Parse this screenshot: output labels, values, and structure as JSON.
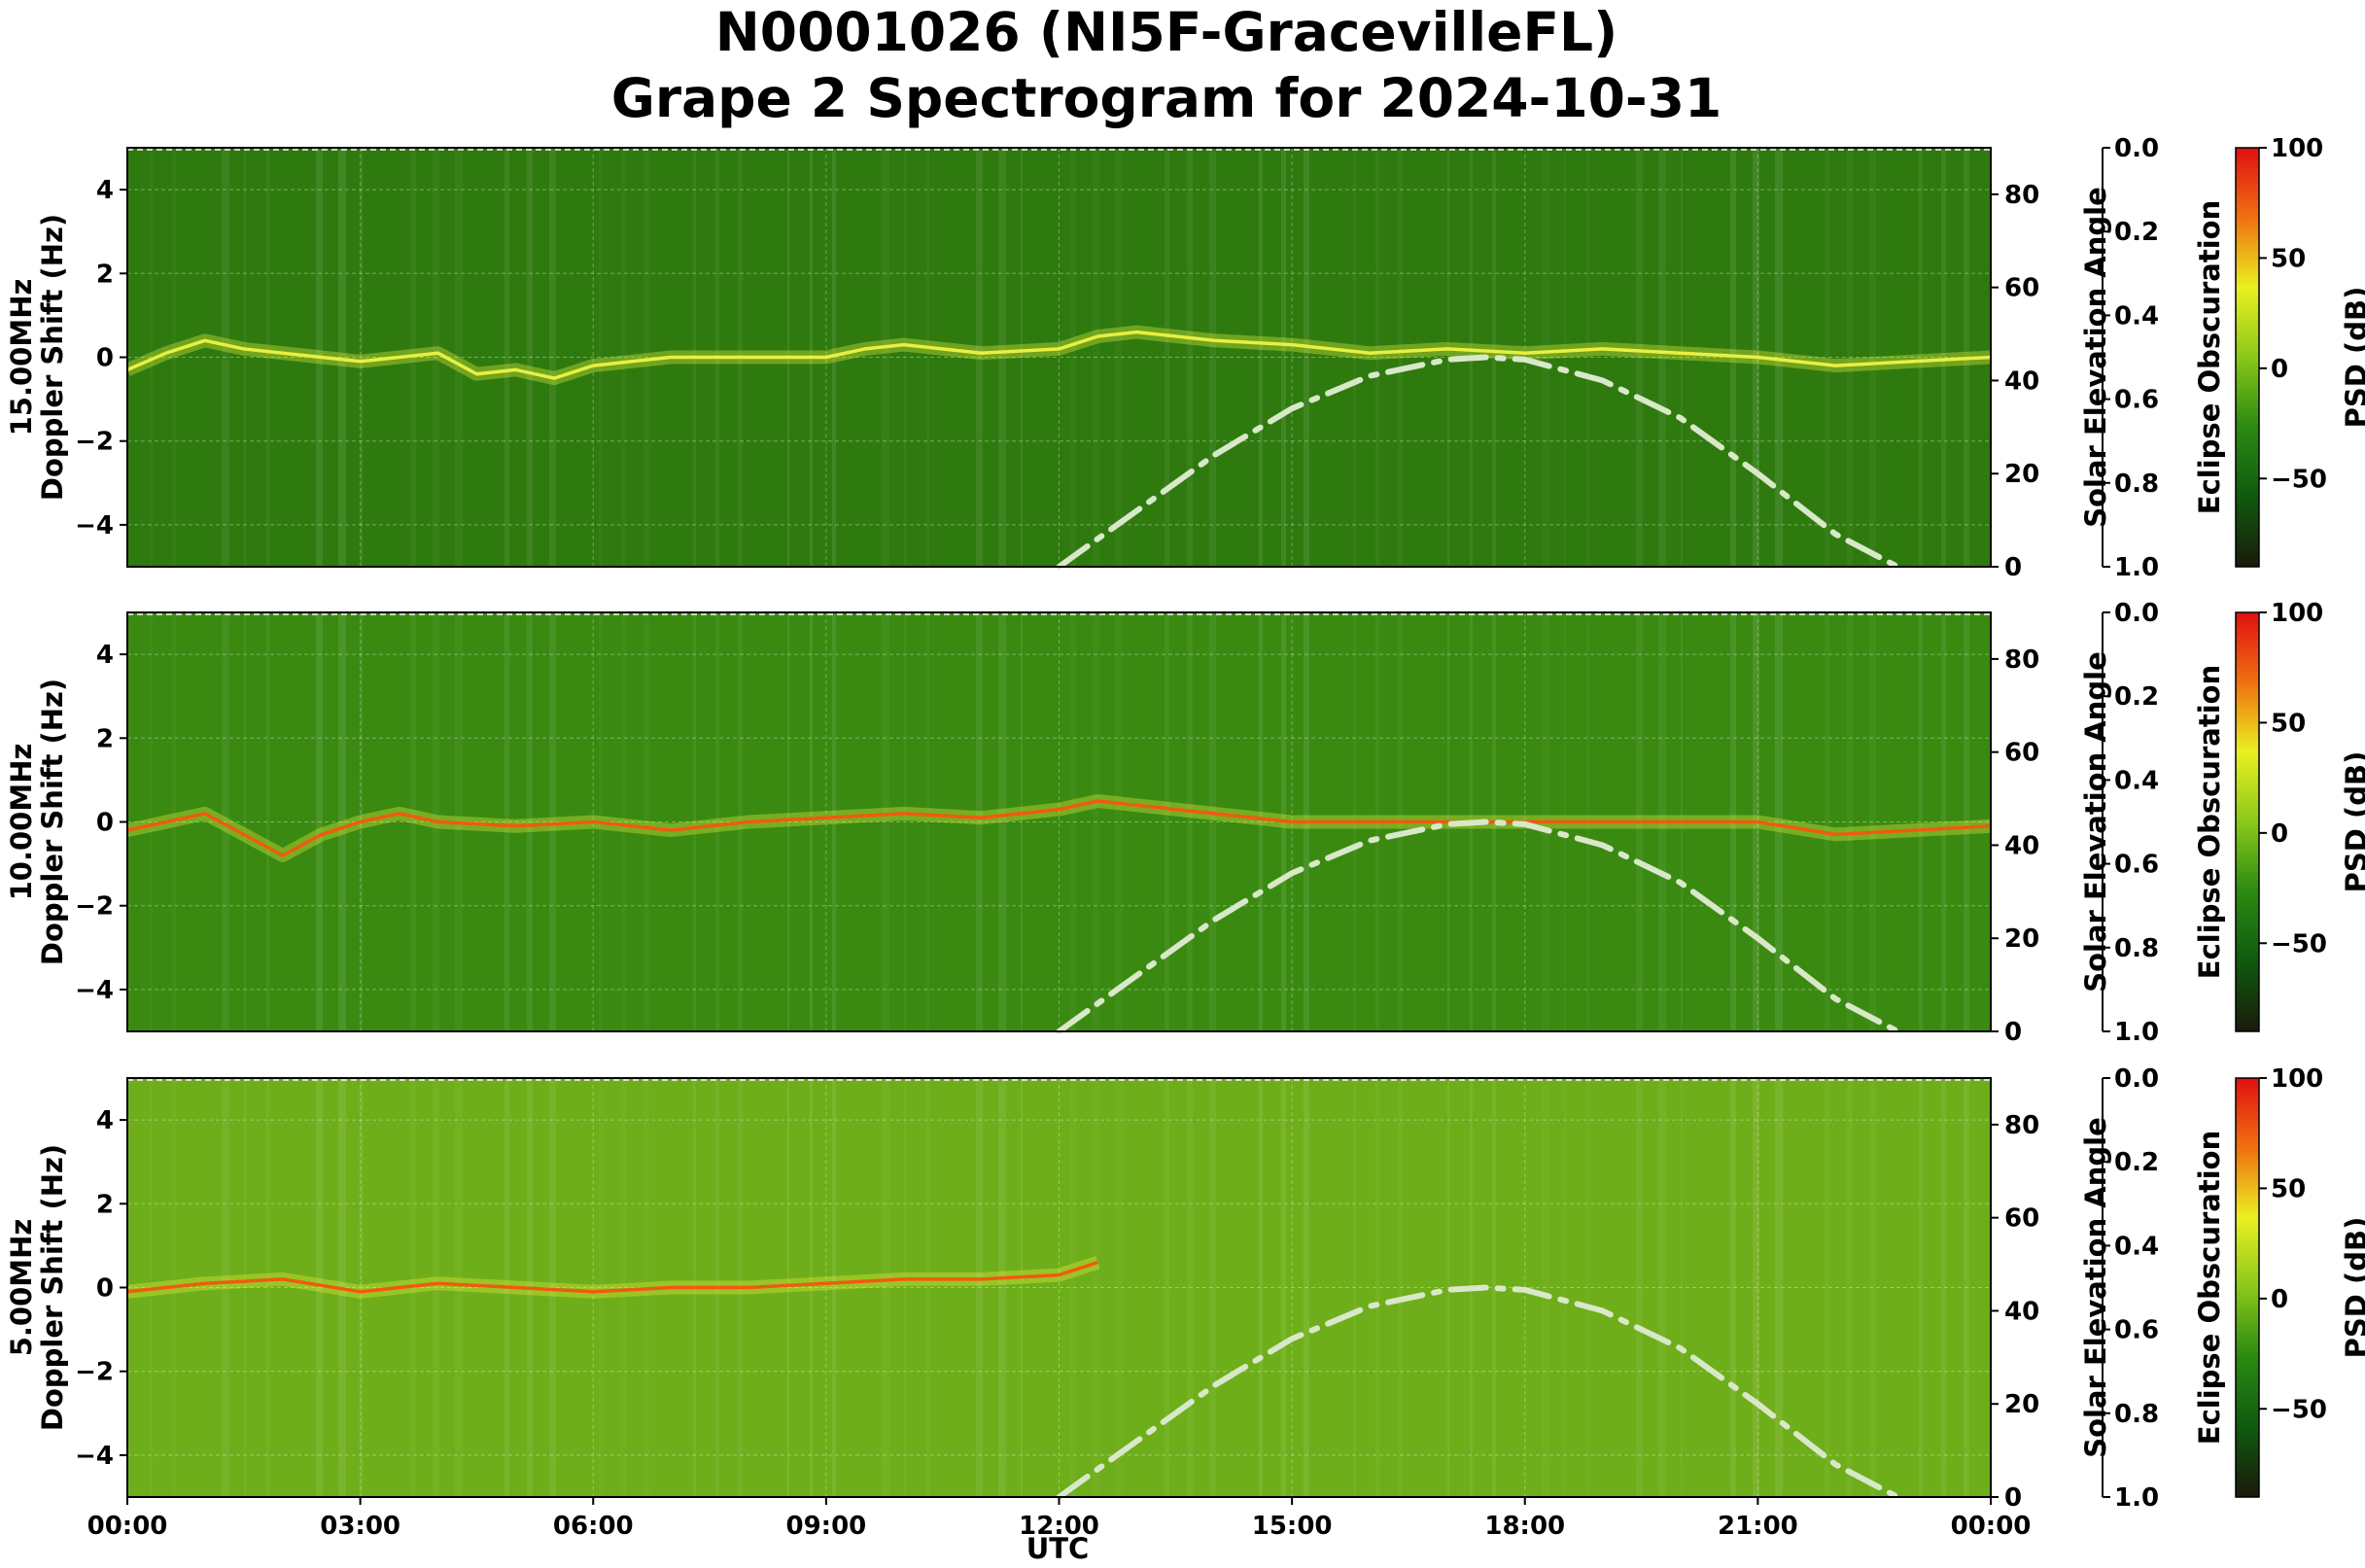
{
  "chart_data": {
    "type": "heatmap",
    "title_line1": "N0001026 (NI5F-GracevilleFL)",
    "title_line2": "Grape 2 Spectrogram for 2024-10-31",
    "xlabel": "UTC",
    "x_ticks": [
      "00:00",
      "03:00",
      "06:00",
      "09:00",
      "12:00",
      "15:00",
      "18:00",
      "21:00",
      "00:00"
    ],
    "x_range_hours": [
      0,
      24
    ],
    "grid": true,
    "panels": [
      {
        "frequency_label": "15.00MHz",
        "ylabel": "Doppler Shift (Hz)",
        "ylim": [
          -5,
          5
        ],
        "y_ticks": [
          "4",
          "2",
          "0",
          "−2",
          "−4"
        ],
        "y_tick_values": [
          4,
          2,
          0,
          -2,
          -4
        ],
        "solar_axis_label": "Solar Elevation Angle",
        "solar_ylim": [
          0,
          90
        ],
        "solar_ticks": [
          "80",
          "60",
          "40",
          "20",
          "0"
        ],
        "solar_tick_values": [
          80,
          60,
          40,
          20,
          0
        ],
        "eclipse_label": "Eclipse Obscuration",
        "eclipse_ticks": [
          "0.0",
          "0.2",
          "0.4",
          "0.6",
          "0.8",
          "1.0"
        ],
        "eclipse_tick_values": [
          0.0,
          0.2,
          0.4,
          0.6,
          0.8,
          1.0
        ],
        "colorbar_label": "PSD (dB)",
        "colorbar_ticks": [
          "100",
          "50",
          "0",
          "−50"
        ],
        "colorbar_tick_values": [
          100,
          50,
          0,
          -50
        ],
        "colorbar_range": [
          -90,
          100
        ],
        "background": "#2f7a0f",
        "trace": {
          "hours": [
            0,
            0.5,
            1,
            1.5,
            2,
            2.5,
            3,
            3.5,
            4,
            4.5,
            5,
            5.5,
            6,
            6.5,
            7,
            8,
            9,
            9.5,
            10,
            11,
            12,
            12.5,
            13,
            14,
            15,
            16,
            17,
            18,
            19,
            20,
            21,
            22,
            23,
            24
          ],
          "doppler": [
            -0.3,
            0.1,
            0.4,
            0.2,
            0.1,
            0.0,
            -0.1,
            0.0,
            0.1,
            -0.4,
            -0.3,
            -0.5,
            -0.2,
            -0.1,
            0.0,
            0.0,
            0.0,
            0.2,
            0.3,
            0.1,
            0.2,
            0.5,
            0.6,
            0.4,
            0.3,
            0.1,
            0.2,
            0.1,
            0.2,
            0.1,
            0.0,
            -0.2,
            -0.1,
            0.0
          ],
          "color": "#e8f040"
        }
      },
      {
        "frequency_label": "10.00MHz",
        "ylabel": "Doppler Shift (Hz)",
        "ylim": [
          -5,
          5
        ],
        "y_ticks": [
          "4",
          "2",
          "0",
          "−2",
          "−4"
        ],
        "y_tick_values": [
          4,
          2,
          0,
          -2,
          -4
        ],
        "solar_axis_label": "Solar Elevation Angle",
        "solar_ylim": [
          0,
          90
        ],
        "solar_ticks": [
          "80",
          "60",
          "40",
          "20",
          "0"
        ],
        "solar_tick_values": [
          80,
          60,
          40,
          20,
          0
        ],
        "eclipse_label": "Eclipse Obscuration",
        "eclipse_ticks": [
          "0.0",
          "0.2",
          "0.4",
          "0.6",
          "0.8",
          "1.0"
        ],
        "eclipse_tick_values": [
          0.0,
          0.2,
          0.4,
          0.6,
          0.8,
          1.0
        ],
        "colorbar_label": "PSD (dB)",
        "colorbar_ticks": [
          "100",
          "50",
          "0",
          "−50"
        ],
        "colorbar_tick_values": [
          100,
          50,
          0,
          -50
        ],
        "colorbar_range": [
          -90,
          100
        ],
        "background": "#3a8a12",
        "trace": {
          "hours": [
            0,
            0.5,
            1,
            1.5,
            2,
            2.5,
            3,
            3.5,
            4,
            5,
            6,
            7,
            8,
            9,
            10,
            11,
            12,
            12.5,
            13,
            14,
            15,
            16,
            17,
            18,
            19,
            20,
            21,
            22,
            23,
            24
          ],
          "doppler": [
            -0.2,
            0.0,
            0.2,
            -0.3,
            -0.8,
            -0.3,
            0.0,
            0.2,
            0.0,
            -0.1,
            0.0,
            -0.2,
            0.0,
            0.1,
            0.2,
            0.1,
            0.3,
            0.5,
            0.4,
            0.2,
            0.0,
            0.0,
            0.0,
            0.0,
            0.0,
            0.0,
            0.0,
            -0.3,
            -0.2,
            -0.1
          ],
          "color": "#f05a10"
        }
      },
      {
        "frequency_label": "5.00MHz",
        "ylabel": "Doppler Shift (Hz)",
        "ylim": [
          -5,
          5
        ],
        "y_ticks": [
          "4",
          "2",
          "0",
          "−2",
          "−4"
        ],
        "y_tick_values": [
          4,
          2,
          0,
          -2,
          -4
        ],
        "solar_axis_label": "Solar Elevation Angle",
        "solar_ylim": [
          0,
          90
        ],
        "solar_ticks": [
          "80",
          "60",
          "40",
          "20",
          "0"
        ],
        "solar_tick_values": [
          80,
          60,
          40,
          20,
          0
        ],
        "eclipse_label": "Eclipse Obscuration",
        "eclipse_ticks": [
          "0.0",
          "0.2",
          "0.4",
          "0.6",
          "0.8",
          "1.0"
        ],
        "eclipse_tick_values": [
          0.0,
          0.2,
          0.4,
          0.6,
          0.8,
          1.0
        ],
        "colorbar_label": "PSD (dB)",
        "colorbar_ticks": [
          "100",
          "50",
          "0",
          "−50"
        ],
        "colorbar_tick_values": [
          100,
          50,
          0,
          -50
        ],
        "colorbar_range": [
          -90,
          100
        ],
        "background": "#6eae1a",
        "trace": {
          "hours": [
            0,
            1,
            2,
            3,
            4,
            5,
            6,
            7,
            8,
            9,
            10,
            11,
            12,
            12.5
          ],
          "doppler": [
            -0.1,
            0.1,
            0.2,
            -0.1,
            0.1,
            0.0,
            -0.1,
            0.0,
            0.0,
            0.1,
            0.2,
            0.2,
            0.3,
            0.6
          ],
          "color": "#f05a10"
        }
      }
    ],
    "solar_elevation_curve": {
      "hours": [
        12.0,
        13.0,
        14.0,
        15.0,
        16.0,
        17.0,
        17.5,
        18.0,
        19.0,
        20.0,
        21.0,
        22.0,
        22.8
      ],
      "elevation_deg": [
        0,
        12,
        24,
        34,
        41,
        44.5,
        45,
        44.5,
        40,
        32,
        20,
        7,
        0
      ],
      "style": "dash-dot",
      "color": "#d8e8c8"
    },
    "colorbar_colors": [
      "#1a1a0a",
      "#0f5a0f",
      "#2a8a10",
      "#8ac81a",
      "#eaf020",
      "#f07010",
      "#e01010"
    ]
  }
}
